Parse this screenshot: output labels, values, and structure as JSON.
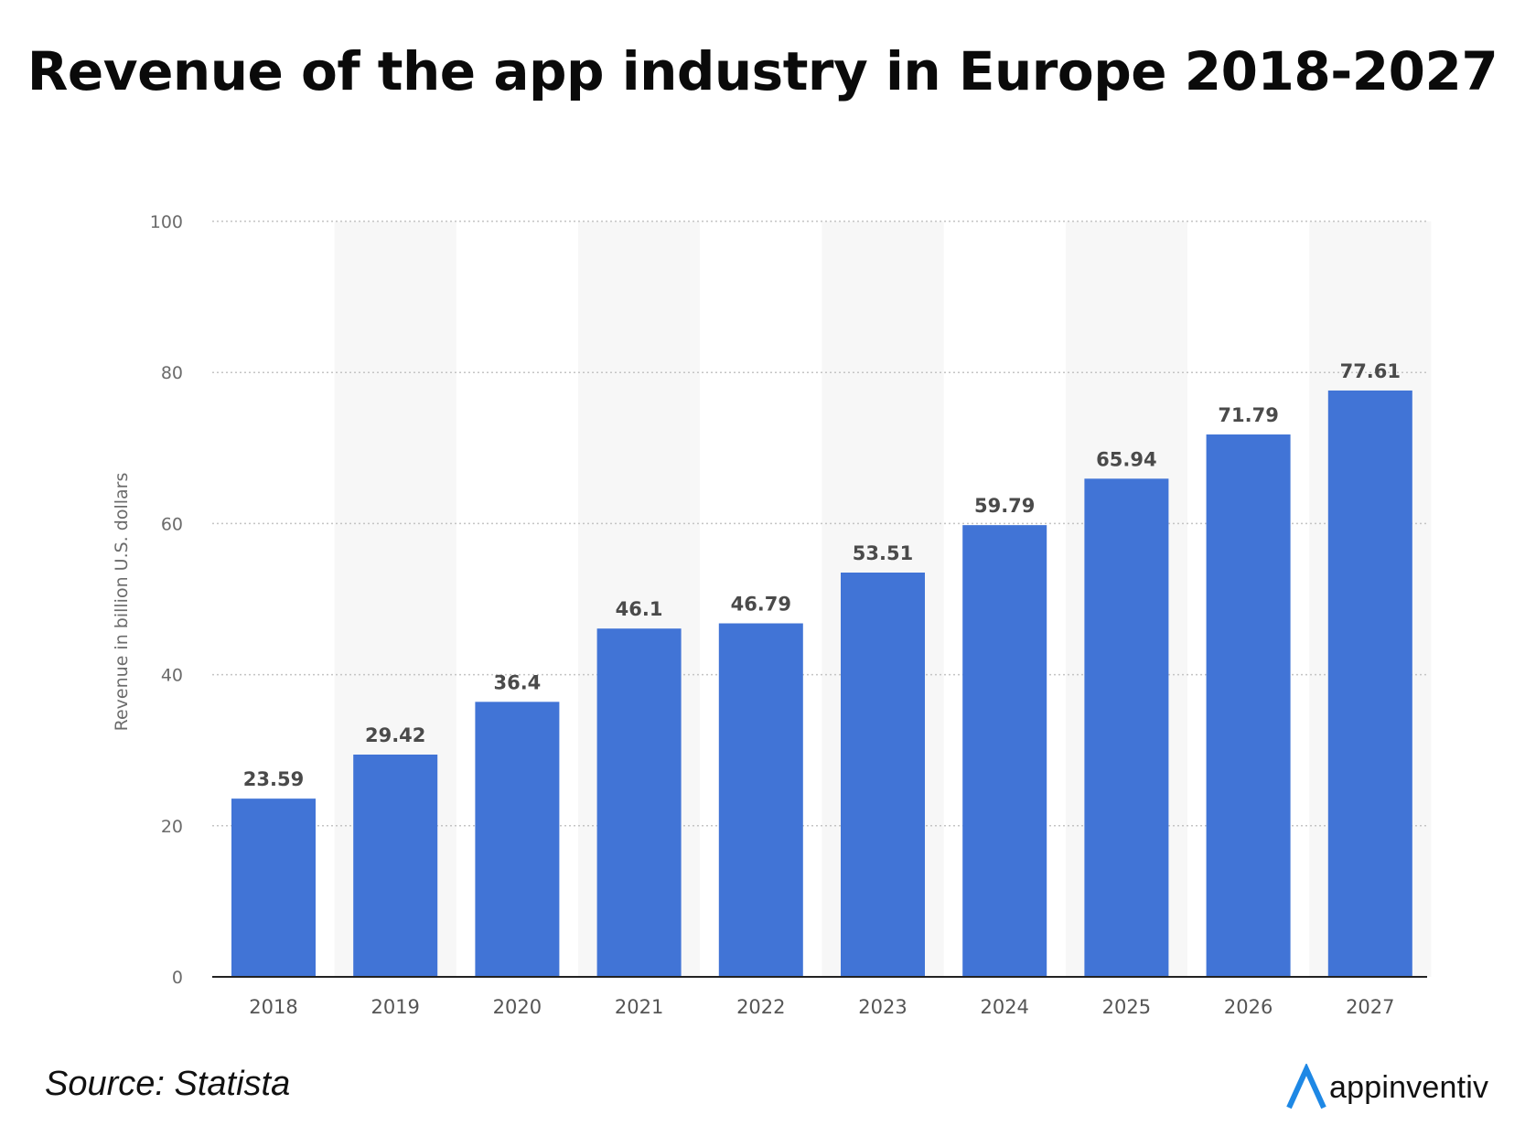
{
  "title": "Revenue of the app industry in Europe 2018-2027",
  "source": "Source: Statista",
  "brand": {
    "name": "appinventiv",
    "icon": "appinventiv-logo-icon",
    "color": "#1e88e5"
  },
  "colors": {
    "bar": "#4174d6",
    "band": "#f7f7f7",
    "grid": "#c4c4c4",
    "axis": "#222222"
  },
  "chart_data": {
    "type": "bar",
    "categories": [
      "2018",
      "2019",
      "2020",
      "2021",
      "2022",
      "2023",
      "2024",
      "2025",
      "2026",
      "2027"
    ],
    "values": [
      23.59,
      29.42,
      36.4,
      46.1,
      46.79,
      53.51,
      59.79,
      65.94,
      71.79,
      77.61
    ],
    "value_labels": [
      "23.59",
      "29.42",
      "36.4",
      "46.1",
      "46.79",
      "53.51",
      "59.79",
      "65.94",
      "71.79",
      "77.61"
    ],
    "ylabel": "Revenue in billion U.S. dollars",
    "ylim": [
      0,
      100
    ],
    "yticks": [
      0,
      20,
      40,
      60,
      80,
      100
    ],
    "grid": true,
    "alternating_bands": true
  }
}
